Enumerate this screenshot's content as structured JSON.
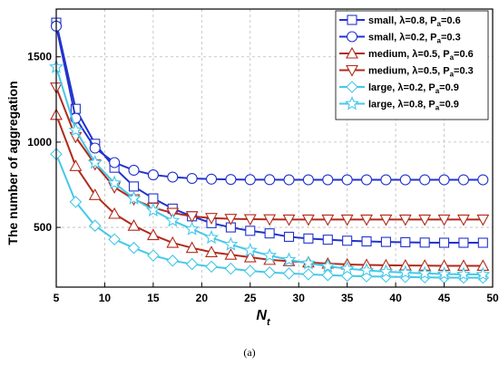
{
  "chart_data": {
    "type": "line",
    "ylabel": "The number of aggregation",
    "xlabel_main": "N",
    "xlabel_sub": "t",
    "xlim": [
      5,
      50
    ],
    "ylim": [
      150,
      1780
    ],
    "xticks": [
      5,
      10,
      15,
      20,
      25,
      30,
      35,
      40,
      45,
      50
    ],
    "yticks": [
      500,
      1000,
      1500
    ],
    "grid": "dashed",
    "legend_position": "top-right",
    "x": [
      5,
      7,
      9,
      11,
      13,
      15,
      17,
      19,
      21,
      23,
      25,
      27,
      29,
      31,
      33,
      35,
      37,
      39,
      41,
      43,
      45,
      47,
      49
    ],
    "series": [
      {
        "name_prefix": "small, λ=0.8, P",
        "name_sub": "a",
        "name_suffix": "=0.6",
        "color": "#2233cc",
        "marker": "square",
        "values": [
          1700,
          1195,
          990,
          850,
          740,
          670,
          610,
          565,
          525,
          500,
          480,
          465,
          445,
          435,
          428,
          422,
          418,
          415,
          413,
          411,
          410,
          410,
          410
        ]
      },
      {
        "name_prefix": "small, λ=0.2, P",
        "name_sub": "a",
        "name_suffix": "=0.3",
        "color": "#2233cc",
        "marker": "circle",
        "values": [
          1680,
          1140,
          965,
          880,
          835,
          808,
          795,
          787,
          783,
          781,
          780,
          780,
          779,
          779,
          779,
          779,
          779,
          779,
          779,
          779,
          779,
          779,
          779
        ]
      },
      {
        "name_prefix": "medium, λ=0.5, P",
        "name_sub": "a",
        "name_suffix": "=0.6",
        "color": "#b22a1a",
        "marker": "triangle-up",
        "values": [
          1160,
          860,
          690,
          580,
          510,
          455,
          410,
          380,
          355,
          340,
          325,
          310,
          302,
          295,
          288,
          283,
          280,
          278,
          277,
          276,
          275,
          275,
          275
        ]
      },
      {
        "name_prefix": "medium, λ=0.5, P",
        "name_sub": "a",
        "name_suffix": "=0.3",
        "color": "#b22a1a",
        "marker": "triangle-down",
        "values": [
          1320,
          1030,
          870,
          735,
          665,
          615,
          585,
          565,
          555,
          550,
          548,
          547,
          546,
          546,
          546,
          546,
          546,
          546,
          546,
          546,
          546,
          546,
          546
        ]
      },
      {
        "name_prefix": "large, λ=0.2, P",
        "name_sub": "a",
        "name_suffix": "=0.9",
        "color": "#45c8e8",
        "marker": "diamond",
        "values": [
          930,
          650,
          510,
          430,
          380,
          335,
          305,
          285,
          270,
          258,
          245,
          236,
          230,
          225,
          220,
          216,
          213,
          211,
          209,
          207,
          206,
          205,
          205
        ]
      },
      {
        "name_prefix": "large, λ=0.8, P",
        "name_sub": "a",
        "name_suffix": "=0.9",
        "color": "#45c8e8",
        "marker": "star",
        "values": [
          1440,
          1070,
          880,
          760,
          670,
          600,
          540,
          490,
          440,
          400,
          365,
          335,
          310,
          290,
          272,
          258,
          248,
          240,
          235,
          230,
          227,
          225,
          224
        ]
      }
    ]
  },
  "caption": "(a)"
}
